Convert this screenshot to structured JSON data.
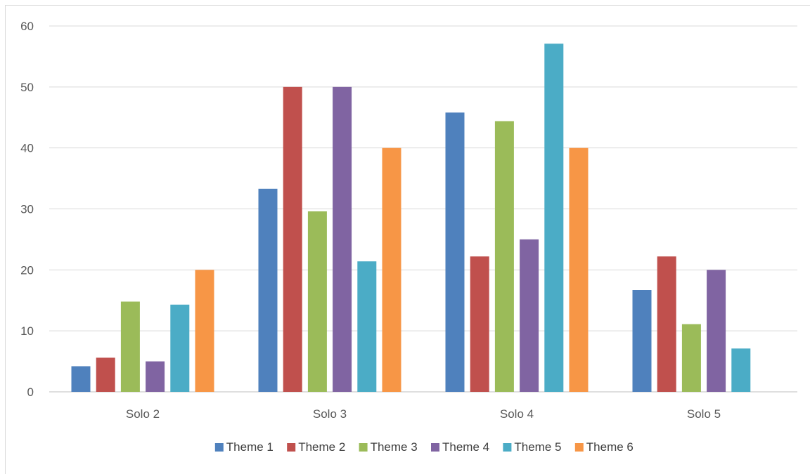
{
  "chart_data": {
    "type": "bar",
    "categories": [
      "Solo 2",
      "Solo 3",
      "Solo 4",
      "Solo 5"
    ],
    "series": [
      {
        "name": "Theme 1",
        "color": "#4f81bd",
        "values": [
          4.2,
          33.3,
          45.8,
          16.7
        ]
      },
      {
        "name": "Theme 2",
        "color": "#c0504d",
        "values": [
          5.6,
          50.0,
          22.2,
          22.2
        ]
      },
      {
        "name": "Theme 3",
        "color": "#9bbb59",
        "values": [
          14.8,
          29.6,
          44.4,
          11.1
        ]
      },
      {
        "name": "Theme 4",
        "color": "#8064a2",
        "values": [
          5.0,
          50.0,
          25.0,
          20.0
        ]
      },
      {
        "name": "Theme 5",
        "color": "#4bacc6",
        "values": [
          14.3,
          21.4,
          57.1,
          7.1
        ]
      },
      {
        "name": "Theme 6",
        "color": "#f79646",
        "values": [
          20.0,
          40.0,
          40.0,
          null
        ]
      }
    ],
    "y_ticks": [
      "0",
      "10",
      "20",
      "30",
      "40",
      "50",
      "60"
    ],
    "ylim": [
      0,
      60
    ],
    "grid": true,
    "legend": "bottom",
    "title": "",
    "xlabel": "",
    "ylabel": ""
  }
}
